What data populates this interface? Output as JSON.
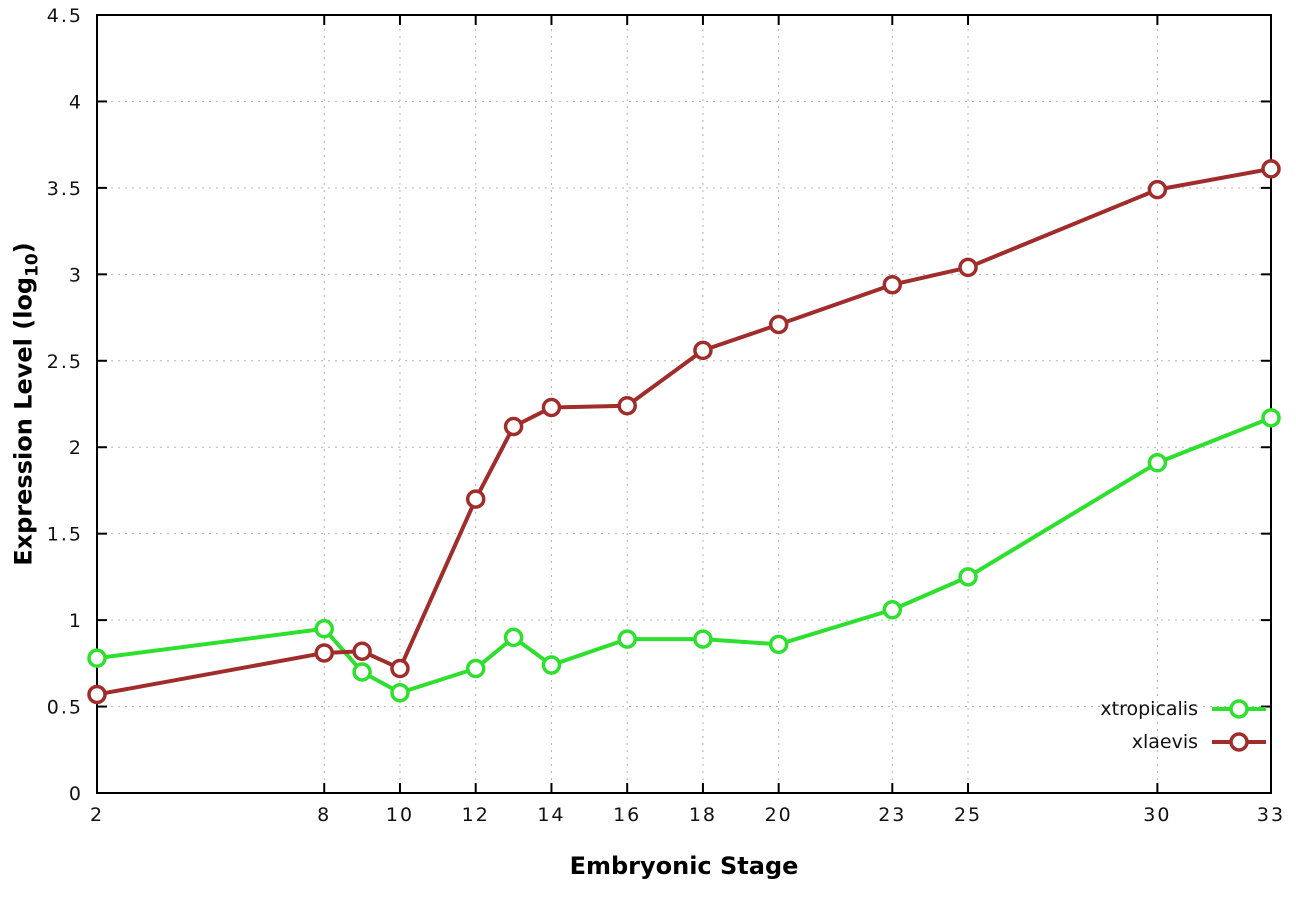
{
  "chart_data": {
    "type": "line",
    "title": "",
    "xlabel": "Embryonic Stage",
    "ylabel_main": "Expression Level (log",
    "ylabel_sub": "10",
    "ylabel_close": ")",
    "xlim": [
      2,
      33
    ],
    "ylim": [
      0,
      4.5
    ],
    "xticks": [
      2,
      8,
      10,
      12,
      14,
      16,
      18,
      20,
      23,
      25,
      30,
      33
    ],
    "yticks": [
      0,
      0.5,
      1,
      1.5,
      2,
      2.5,
      3,
      3.5,
      4,
      4.5
    ],
    "grid": true,
    "legend_position": "bottom-right",
    "marker": "open-circle",
    "series": [
      {
        "name": "xtropicalis",
        "color": "#2ee02e",
        "x": [
          2,
          8,
          9,
          10,
          12,
          13,
          14,
          16,
          18,
          20,
          23,
          25,
          30,
          33
        ],
        "y": [
          0.78,
          0.95,
          0.7,
          0.58,
          0.72,
          0.9,
          0.74,
          0.89,
          0.89,
          0.86,
          1.06,
          1.25,
          1.91,
          2.17
        ]
      },
      {
        "name": "xlaevis",
        "color": "#a02c2c",
        "x": [
          2,
          8,
          9,
          10,
          12,
          13,
          14,
          16,
          18,
          20,
          23,
          25,
          30,
          33
        ],
        "y": [
          0.57,
          0.81,
          0.82,
          0.72,
          1.7,
          2.12,
          2.23,
          2.24,
          2.56,
          2.71,
          2.94,
          3.04,
          3.49,
          3.61
        ]
      }
    ]
  }
}
